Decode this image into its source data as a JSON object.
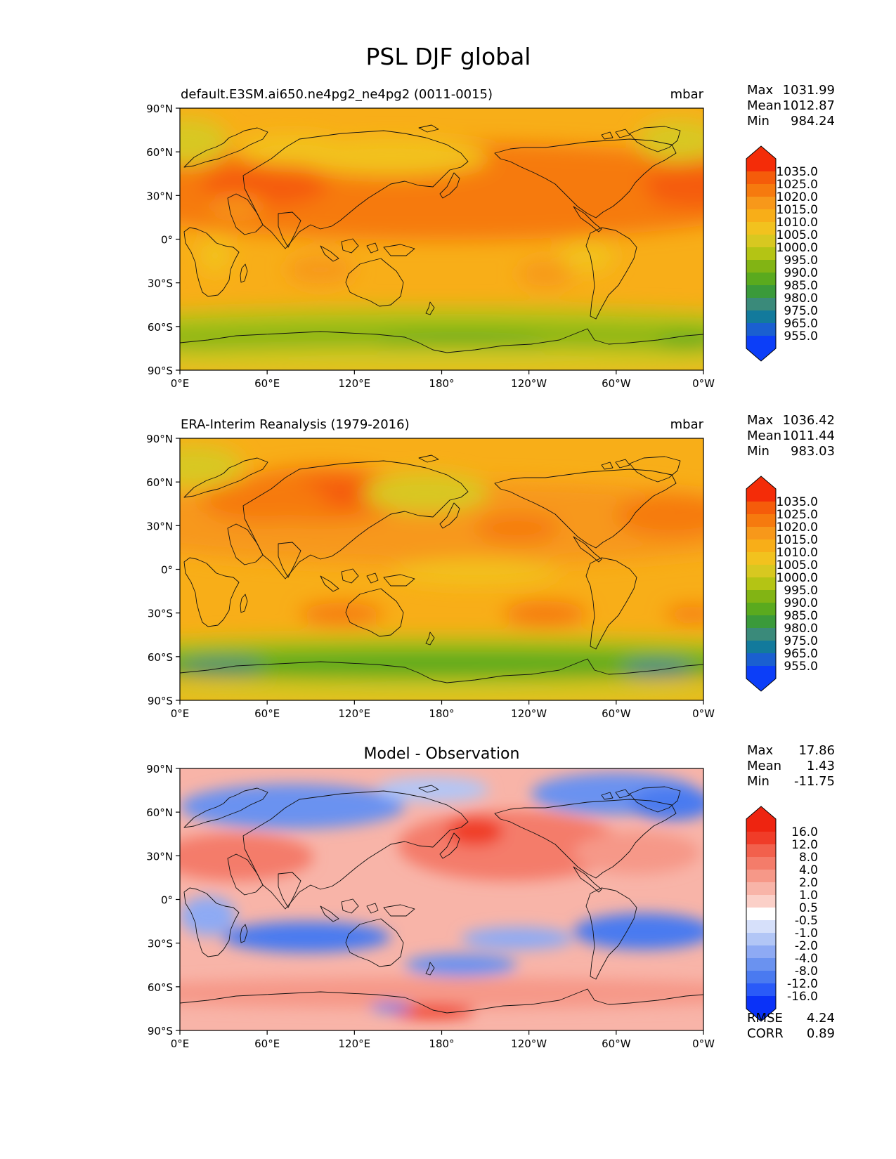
{
  "figure": {
    "title": "PSL DJF global"
  },
  "map_axes": {
    "lat_ticks": [
      "90°N",
      "60°N",
      "30°N",
      "0°",
      "30°S",
      "60°S",
      "90°S"
    ],
    "lon_ticks": [
      "0°E",
      "60°E",
      "120°E",
      "180°",
      "120°W",
      "60°W",
      "0°W"
    ]
  },
  "colors": {
    "abs_scale": [
      "#0c3ef8",
      "#1a5fd0",
      "#127a9c",
      "#3a8a7a",
      "#3a9a3a",
      "#5aaa1e",
      "#82b414",
      "#b4c414",
      "#d8c820",
      "#f2c21e",
      "#f8ae18",
      "#f7981a",
      "#f67a0e",
      "#f55c0a",
      "#f42c08"
    ],
    "diff_scale": [
      "#0a32f8",
      "#2a5af8",
      "#4a7af0",
      "#6a92f0",
      "#8eaaf4",
      "#b2c6f6",
      "#d6e0fa",
      "#ffffff",
      "#fbd0c8",
      "#f8b4a8",
      "#f69888",
      "#f47c6a",
      "#f2604c",
      "#f03c28",
      "#ee2410"
    ]
  },
  "panels": [
    {
      "title": "default.E3SM.ai650.ne4pg2_ne4pg2 (0011-0015)",
      "units": "mbar",
      "stats": [
        {
          "label": "Max",
          "value": "1031.99"
        },
        {
          "label": "Mean",
          "value": "1012.87"
        },
        {
          "label": "Min",
          "value": "984.24"
        }
      ],
      "colorbar_labels": [
        "1035.0",
        "1025.0",
        "1020.0",
        "1015.0",
        "1010.0",
        "1005.0",
        "1000.0",
        "995.0",
        "990.0",
        "985.0",
        "980.0",
        "975.0",
        "965.0",
        "955.0"
      ]
    },
    {
      "title": "ERA-Interim Reanalysis (1979-2016)",
      "units": "mbar",
      "stats": [
        {
          "label": "Max",
          "value": "1036.42"
        },
        {
          "label": "Mean",
          "value": "1011.44"
        },
        {
          "label": "Min",
          "value": "983.03"
        }
      ],
      "colorbar_labels": [
        "1035.0",
        "1025.0",
        "1020.0",
        "1015.0",
        "1010.0",
        "1005.0",
        "1000.0",
        "995.0",
        "990.0",
        "985.0",
        "980.0",
        "975.0",
        "965.0",
        "955.0"
      ]
    },
    {
      "title": "Model - Observation",
      "units": "",
      "stats": [
        {
          "label": "Max",
          "value": "17.86"
        },
        {
          "label": "Mean",
          "value": "1.43"
        },
        {
          "label": "Min",
          "value": "-11.75"
        }
      ],
      "colorbar_labels": [
        "16.0",
        "12.0",
        "8.0",
        "4.0",
        "2.0",
        "1.0",
        "0.5",
        "-0.5",
        "-1.0",
        "-2.0",
        "-4.0",
        "-8.0",
        "-12.0",
        "-16.0"
      ],
      "metrics": [
        {
          "label": "RMSE",
          "value": "4.24"
        },
        {
          "label": "CORR",
          "value": "0.89"
        }
      ]
    }
  ]
}
